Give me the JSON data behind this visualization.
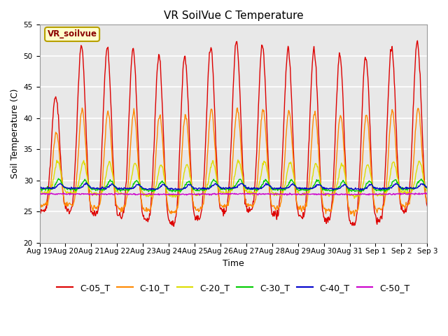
{
  "title": "VR SoilVue C Temperature",
  "xlabel": "Time",
  "ylabel": "Soil Temperature (C)",
  "ylim": [
    20,
    55
  ],
  "yticks": [
    20,
    25,
    30,
    35,
    40,
    45,
    50,
    55
  ],
  "n_days": 15,
  "background_color": "#ffffff",
  "plot_bg_color": "#e8e8e8",
  "grid_color": "#ffffff",
  "annotation_text": "VR_soilvue",
  "annotation_bg": "#ffffcc",
  "annotation_border": "#b8a000",
  "series_order": [
    "C-05_T",
    "C-10_T",
    "C-20_T",
    "C-30_T",
    "C-40_T",
    "C-50_T"
  ],
  "series": {
    "C-05_T": {
      "color": "#dd0000",
      "lw": 1.0
    },
    "C-10_T": {
      "color": "#ff8800",
      "lw": 1.0
    },
    "C-20_T": {
      "color": "#dddd00",
      "lw": 1.0
    },
    "C-30_T": {
      "color": "#00cc00",
      "lw": 1.0
    },
    "C-40_T": {
      "color": "#0000cc",
      "lw": 1.0
    },
    "C-50_T": {
      "color": "#cc00cc",
      "lw": 1.0
    }
  },
  "xtick_labels": [
    "Aug 19",
    "Aug 20",
    "Aug 21",
    "Aug 22",
    "Aug 23",
    "Aug 24",
    "Aug 25",
    "Aug 26",
    "Aug 27",
    "Aug 28",
    "Aug 29",
    "Aug 30",
    "Aug 31",
    "Sep 1",
    "Sep 2",
    "Sep 3"
  ],
  "legend_fontsize": 9,
  "title_fontsize": 11
}
